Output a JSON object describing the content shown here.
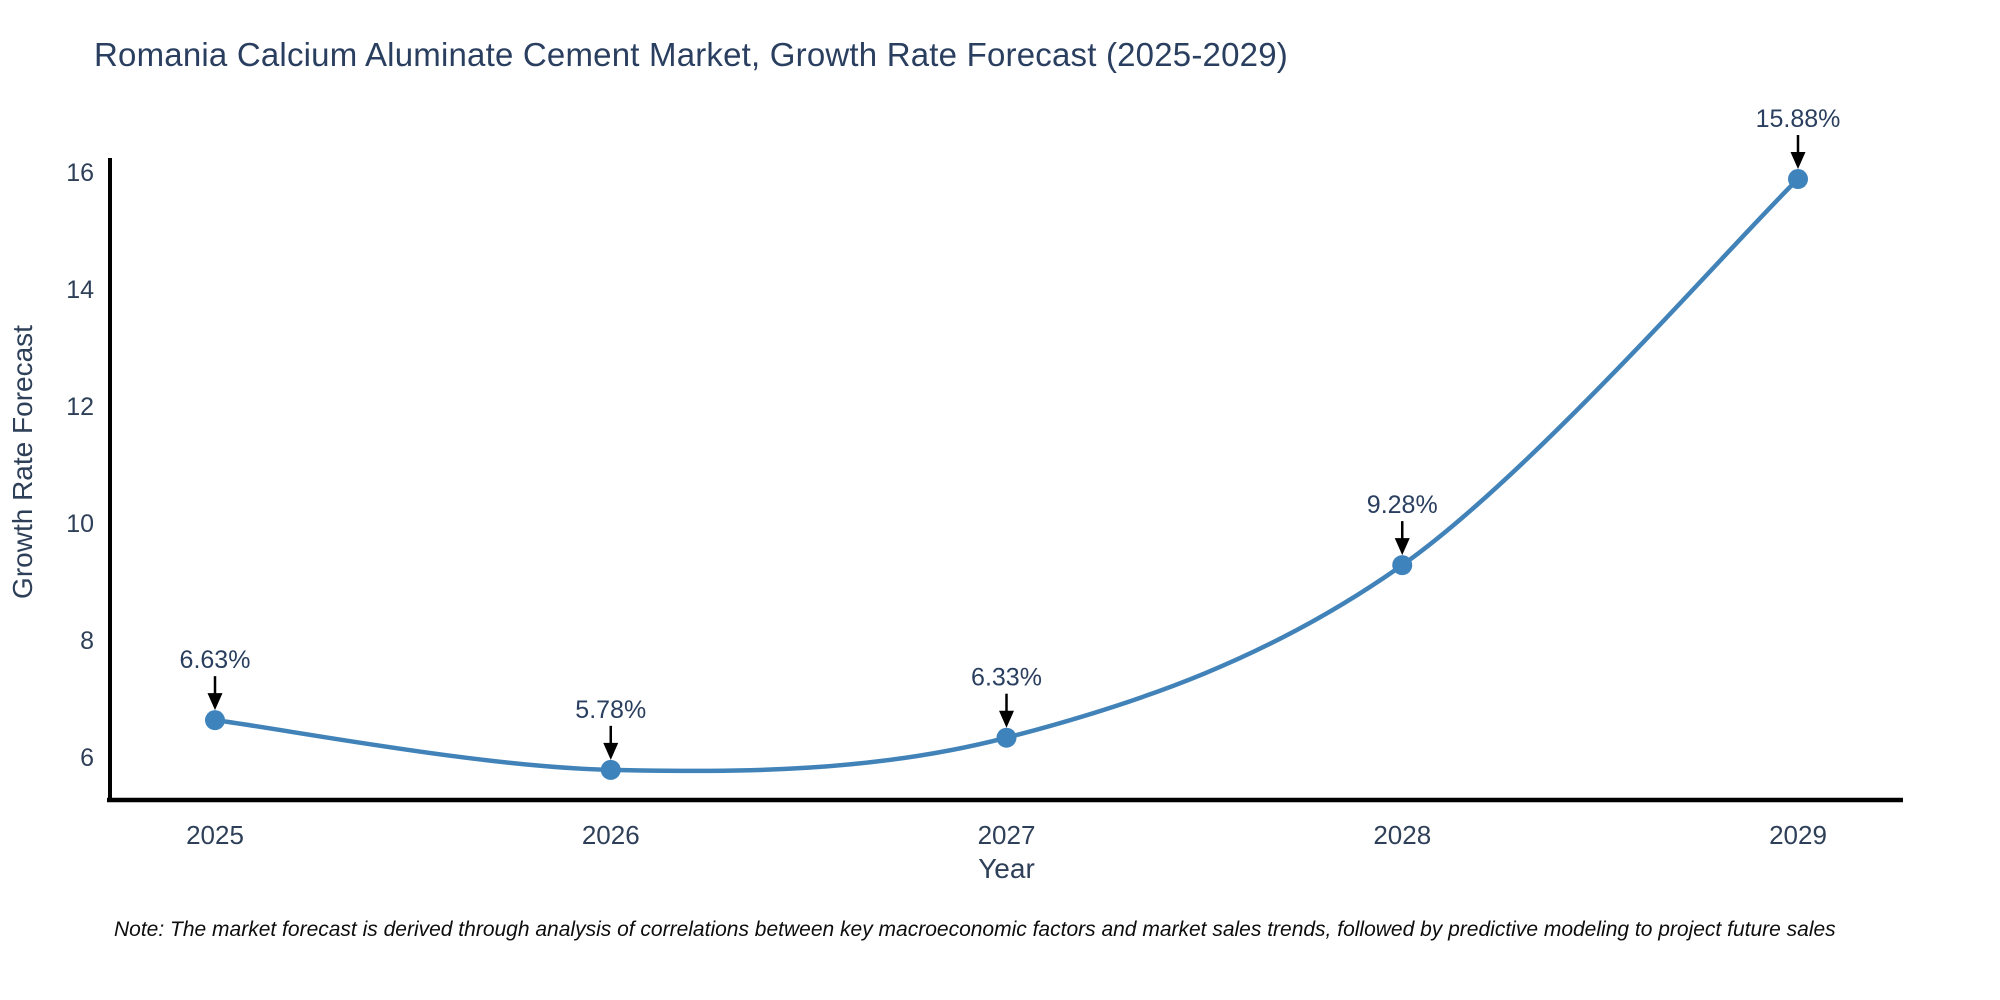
{
  "chart_data": {
    "type": "line",
    "title": "Romania Calcium Aluminate Cement Market, Growth Rate Forecast (2025-2029)",
    "xlabel": "Year",
    "ylabel": "Growth Rate Forecast",
    "x": [
      "2025",
      "2026",
      "2027",
      "2028",
      "2029"
    ],
    "values": [
      6.63,
      5.78,
      6.33,
      9.28,
      15.88
    ],
    "point_labels": [
      "6.63%",
      "5.78%",
      "6.33%",
      "9.28%",
      "15.88%"
    ],
    "yticks": [
      6,
      8,
      10,
      12,
      14,
      16
    ],
    "ylim": [
      5.1,
      16.4
    ],
    "grid": false,
    "legend_position": "none",
    "line_shape": "spline",
    "colors": {
      "line": "#4183b8",
      "marker": "#3f83bd",
      "axis": "#000000",
      "arrow": "#000000",
      "title_text": "#2a3f5f",
      "tick_text": "#2e3f58",
      "annotation_text": "#2a3f5f",
      "note_text": "#0d0d0d"
    },
    "note": "Note: The market forecast is derived through analysis of correlations between key macroeconomic factors and market sales trends, followed by predictive modeling to project future sales"
  }
}
